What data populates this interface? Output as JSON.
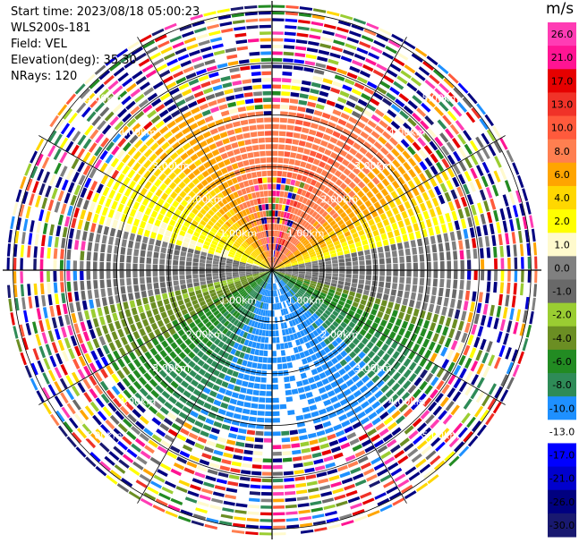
{
  "header": {
    "start_time": "Start time: 2023/08/18 05:00:23",
    "instrument": "WLS200s-181",
    "field": "Field: VEL",
    "elevation": "Elevation(deg): 35.30",
    "nrays": "NRays: 120"
  },
  "chart_data": {
    "type": "polar-ppi",
    "field": "VEL",
    "units": "m/s",
    "n_rays": 120,
    "range_rings_km": [
      1.0,
      2.0,
      3.0,
      4.0,
      5.0
    ],
    "range_ring_labels": [
      "1.00km",
      "2.00km",
      "3.00km",
      "4.00km",
      "5.00km"
    ],
    "colorbar": {
      "unit_label": "m/s",
      "tick_labels": [
        "26.0",
        "21.0",
        "17.0",
        "13.0",
        "10.0",
        "8.0",
        "6.0",
        "4.0",
        "2.0",
        "1.0",
        "0.0",
        "-1.0",
        "-2.0",
        "-4.0",
        "-6.0",
        "-8.0",
        "-10.0",
        "-13.0",
        "-17.0",
        "-21.0",
        "-26.0",
        "-30.0"
      ],
      "bins": [
        {
          "min": 26.0,
          "color": "#ff3cb4"
        },
        {
          "min": 21.0,
          "color": "#ff1493"
        },
        {
          "min": 17.0,
          "color": "#e60000"
        },
        {
          "min": 13.0,
          "color": "#f03228"
        },
        {
          "min": 10.0,
          "color": "#ff5a3c"
        },
        {
          "min": 8.0,
          "color": "#ff7f50"
        },
        {
          "min": 6.0,
          "color": "#ffa500"
        },
        {
          "min": 4.0,
          "color": "#ffd700"
        },
        {
          "min": 2.0,
          "color": "#ffff00"
        },
        {
          "min": 1.0,
          "color": "#fffacd"
        },
        {
          "min": 0.0,
          "color": "#808080"
        },
        {
          "min": -1.0,
          "color": "#696969"
        },
        {
          "min": -2.0,
          "color": "#9acd32"
        },
        {
          "min": -4.0,
          "color": "#6b8e23"
        },
        {
          "min": -6.0,
          "color": "#228b22"
        },
        {
          "min": -8.0,
          "color": "#2e8b57"
        },
        {
          "min": -10.0,
          "color": "#1e90ff"
        },
        {
          "min": -13.0,
          "color": "#ffffff"
        },
        {
          "min": -17.0,
          "color": "#0000ff"
        },
        {
          "min": -21.0,
          "color": "#0000cd"
        },
        {
          "min": -26.0,
          "color": "#000080"
        },
        {
          "min": -30.0,
          "color": "#191970"
        }
      ]
    }
  }
}
